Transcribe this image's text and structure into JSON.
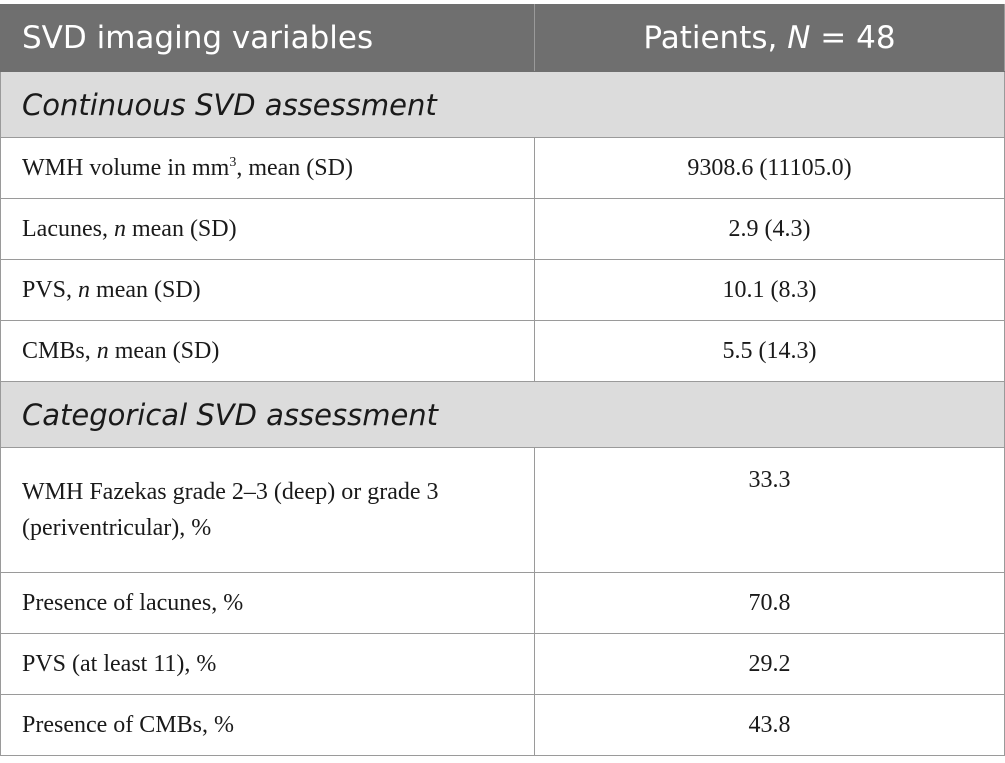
{
  "header": {
    "col1": "SVD imaging variables",
    "col2_prefix": "Patients, ",
    "col2_n": "N",
    "col2_suffix": " = 48"
  },
  "sections": [
    {
      "title": "Continuous SVD assessment",
      "rows": [
        {
          "label_a": "WMH volume in mm",
          "label_sup": "3",
          "label_b": ", mean (SD)",
          "value": "9308.6 (11105.0)"
        },
        {
          "label_a": "Lacunes, ",
          "label_it": "n",
          "label_b": " mean (SD)",
          "value": "2.9 (4.3)"
        },
        {
          "label_a": "PVS, ",
          "label_it": "n",
          "label_b": " mean (SD)",
          "value": "10.1 (8.3)"
        },
        {
          "label_a": "CMBs, ",
          "label_it": "n",
          "label_b": " mean (SD)",
          "value": "5.5 (14.3)"
        }
      ]
    },
    {
      "title": "Categorical SVD assessment",
      "rows": [
        {
          "label": "WMH Fazekas grade 2–3 (deep) or grade 3 (periventricular), %",
          "value": "33.3"
        },
        {
          "label": "Presence of lacunes, %",
          "value": "70.8"
        },
        {
          "label": "PVS (at least 11), %",
          "value": "29.2"
        },
        {
          "label": "Presence of CMBs, %",
          "value": "43.8"
        }
      ]
    }
  ]
}
